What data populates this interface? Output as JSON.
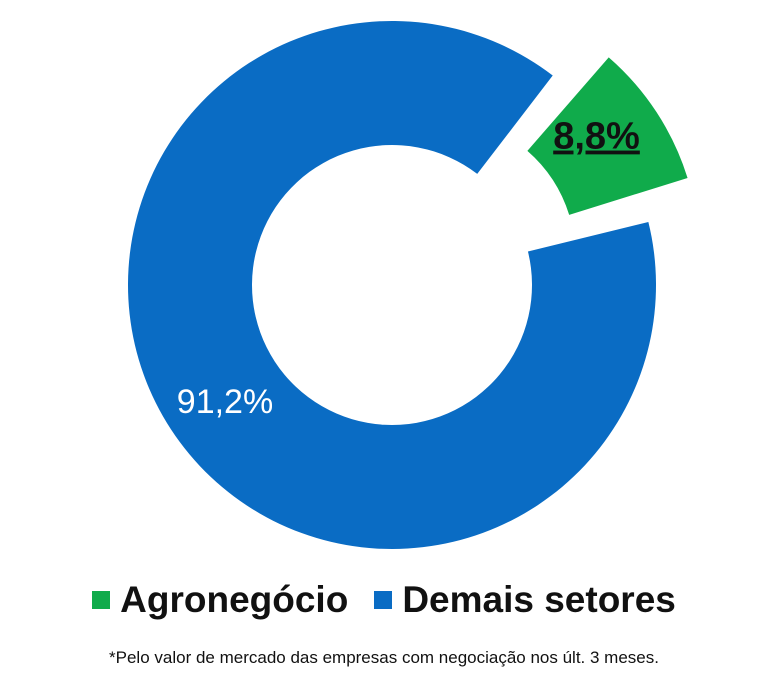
{
  "chart_data": {
    "type": "pie",
    "variant": "donut",
    "categories": [
      "Agronegócio",
      "Demais setores"
    ],
    "values": [
      8.8,
      91.2
    ],
    "data_labels": [
      "8,8%",
      "91,2%"
    ],
    "colors": [
      "#10ab4b",
      "#0a6cc4"
    ],
    "exploded": [
      "Agronegócio"
    ],
    "legend_position": "bottom"
  },
  "footnote": "*Pelo valor de mercado das empresas com negociação nos últ. 3 meses."
}
